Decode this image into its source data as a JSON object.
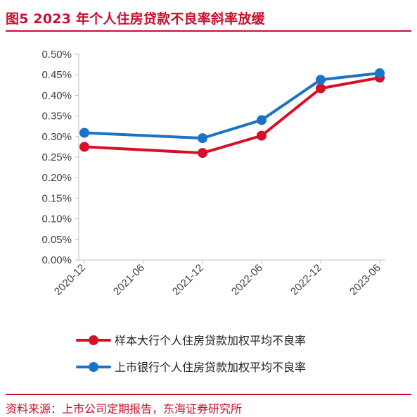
{
  "figure": {
    "title": "图5  2023 年个人住房贷款不良率斜率放缓",
    "source": "资料来源：上市公司定期报告，东海证券研究所",
    "accent_color": "#c8102e"
  },
  "chart_data": {
    "type": "line",
    "title": "",
    "xlabel": "",
    "ylabel": "",
    "categories": [
      "2020-12",
      "2021-06",
      "2021-12",
      "2022-06",
      "2022-12",
      "2023-06"
    ],
    "y_tick_labels": [
      "0.50%",
      "0.45%",
      "0.40%",
      "0.35%",
      "0.30%",
      "0.25%",
      "0.20%",
      "0.15%",
      "0.10%",
      "0.05%",
      "0.00%"
    ],
    "ylim": [
      0,
      0.5
    ],
    "grid": false,
    "legend_position": "bottom",
    "series": [
      {
        "name": "样本大行个人住房贷款加权平均不良率",
        "color": "#d7102a",
        "points": [
          {
            "x": "2020-12",
            "y": 0.275
          },
          {
            "x": "2021-12",
            "y": 0.26
          },
          {
            "x": "2022-06",
            "y": 0.302
          },
          {
            "x": "2022-12",
            "y": 0.417
          },
          {
            "x": "2023-06",
            "y": 0.443
          }
        ]
      },
      {
        "name": "上市银行个人住房贷款加权平均不良率",
        "color": "#1c72c4",
        "points": [
          {
            "x": "2020-12",
            "y": 0.309
          },
          {
            "x": "2021-12",
            "y": 0.296
          },
          {
            "x": "2022-06",
            "y": 0.34
          },
          {
            "x": "2022-12",
            "y": 0.438
          },
          {
            "x": "2023-06",
            "y": 0.454
          }
        ]
      }
    ]
  }
}
